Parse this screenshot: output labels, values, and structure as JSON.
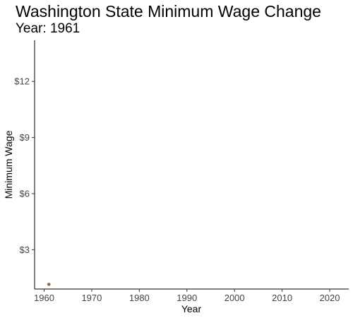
{
  "chart_data": {
    "type": "scatter",
    "title": "Washington State Minimum Wage Change",
    "subtitle": "Year: 1961",
    "xlabel": "Year",
    "ylabel": "Minimum Wage",
    "xlim": [
      1958,
      2024
    ],
    "ylim": [
      0.9,
      14.2
    ],
    "x_ticks": [
      1960,
      1970,
      1980,
      1990,
      2000,
      2010,
      2020
    ],
    "x_tick_labels": [
      "1960",
      "1970",
      "1980",
      "1990",
      "2000",
      "2010",
      "2020"
    ],
    "y_ticks": [
      3,
      6,
      9,
      12
    ],
    "y_tick_labels": [
      "$3",
      "$6",
      "$9",
      "$12"
    ],
    "grid": false,
    "series": [
      {
        "points": [
          {
            "x": 1961,
            "y": 1.15
          }
        ],
        "color": "#8c6d46"
      }
    ]
  }
}
